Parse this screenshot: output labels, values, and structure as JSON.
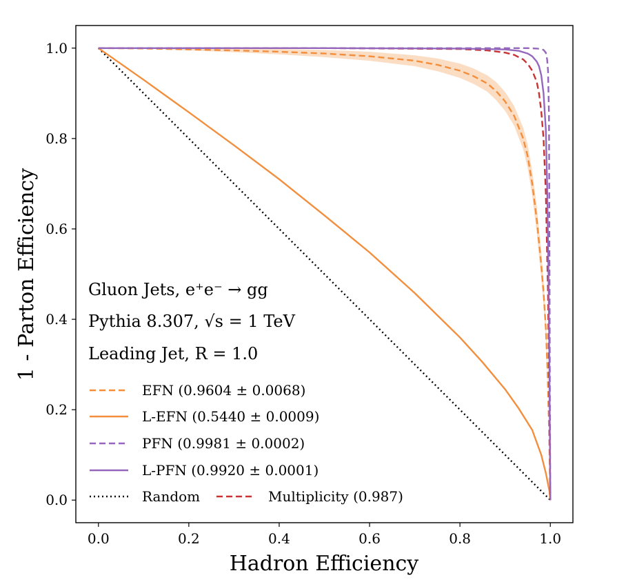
{
  "chart_data": {
    "type": "line",
    "title": "",
    "xlabel": "Hadron Efficiency",
    "ylabel": "1 - Parton Efficiency",
    "xlim": [
      -0.05,
      1.05
    ],
    "ylim": [
      -0.05,
      1.05
    ],
    "xticks": [
      0.0,
      0.2,
      0.4,
      0.6,
      0.8,
      1.0
    ],
    "yticks": [
      0.0,
      0.2,
      0.4,
      0.6,
      0.8,
      1.0
    ],
    "xtick_labels": [
      "0.0",
      "0.2",
      "0.4",
      "0.6",
      "0.8",
      "1.0"
    ],
    "ytick_labels": [
      "0.0",
      "0.2",
      "0.4",
      "0.6",
      "0.8",
      "1.0"
    ],
    "grid": false,
    "annotations": [
      "Gluon Jets, e⁺e⁻ → gg",
      "Pythia 8.307, √s = 1 TeV",
      "Leading Jet, R = 1.0"
    ],
    "legend_placement": "lower-left",
    "series": [
      {
        "name": "EFN (0.9604 ± 0.0068)",
        "color": "#f28e3c",
        "style": "dashed",
        "band": true,
        "band_width": [
          0,
          0,
          0.002,
          0.004,
          0.006,
          0.008,
          0.01,
          0.012,
          0.014,
          0.016,
          0.017,
          0.018,
          0.02,
          0.021,
          0.022,
          0.024,
          0.026,
          0.028,
          0.03,
          0.03,
          0.028,
          0.025,
          0.02,
          0.012,
          0.006,
          0
        ],
        "x": [
          0.0,
          0.1,
          0.2,
          0.3,
          0.4,
          0.5,
          0.6,
          0.7,
          0.75,
          0.8,
          0.83,
          0.86,
          0.88,
          0.9,
          0.92,
          0.94,
          0.95,
          0.96,
          0.97,
          0.98,
          0.985,
          0.99,
          0.994,
          0.997,
          0.999,
          1.0
        ],
        "y": [
          1.0,
          0.999,
          0.997,
          0.995,
          0.992,
          0.988,
          0.982,
          0.972,
          0.963,
          0.95,
          0.938,
          0.922,
          0.905,
          0.882,
          0.85,
          0.8,
          0.76,
          0.7,
          0.62,
          0.52,
          0.46,
          0.38,
          0.28,
          0.16,
          0.06,
          0.0
        ]
      },
      {
        "name": "L-EFN (0.5440 ± 0.0009)",
        "color": "#f28e3c",
        "style": "solid",
        "x": [
          0.0,
          0.05,
          0.1,
          0.2,
          0.3,
          0.4,
          0.5,
          0.6,
          0.7,
          0.8,
          0.85,
          0.9,
          0.93,
          0.96,
          0.98,
          0.99,
          0.998,
          1.0
        ],
        "y": [
          1.0,
          0.965,
          0.93,
          0.858,
          0.785,
          0.71,
          0.63,
          0.548,
          0.458,
          0.36,
          0.305,
          0.245,
          0.203,
          0.155,
          0.1,
          0.06,
          0.02,
          0.0
        ]
      },
      {
        "name": "PFN (0.9981 ± 0.0002)",
        "color": "#9467bd",
        "style": "dashed",
        "x": [
          0.0,
          0.5,
          0.9,
          0.95,
          0.97,
          0.98,
          0.985,
          0.99,
          0.993,
          0.995,
          0.997,
          0.998,
          0.999,
          1.0
        ],
        "y": [
          1.0,
          1.0,
          1.0,
          1.0,
          0.999,
          0.998,
          0.996,
          0.99,
          0.975,
          0.95,
          0.85,
          0.6,
          0.25,
          0.0
        ]
      },
      {
        "name": "L-PFN (0.9920 ± 0.0001)",
        "color": "#9467bd",
        "style": "solid",
        "x": [
          0.0,
          0.5,
          0.8,
          0.9,
          0.93,
          0.95,
          0.96,
          0.97,
          0.975,
          0.98,
          0.985,
          0.99,
          0.993,
          0.996,
          0.998,
          1.0
        ],
        "y": [
          1.0,
          1.0,
          0.999,
          0.997,
          0.994,
          0.988,
          0.982,
          0.97,
          0.96,
          0.94,
          0.9,
          0.82,
          0.7,
          0.5,
          0.3,
          0.0
        ]
      },
      {
        "name": "Random",
        "color": "#000000",
        "style": "dotted",
        "x": [
          0.0,
          1.0
        ],
        "y": [
          1.0,
          0.0
        ]
      },
      {
        "name": "Multiplicity (0.987)",
        "color": "#c73232",
        "style": "dashed",
        "x": [
          0.0,
          0.5,
          0.8,
          0.86,
          0.9,
          0.92,
          0.94,
          0.95,
          0.96,
          0.97,
          0.975,
          0.98,
          0.985,
          0.99,
          0.995,
          0.998,
          1.0
        ],
        "y": [
          1.0,
          1.0,
          0.998,
          0.995,
          0.99,
          0.985,
          0.975,
          0.965,
          0.95,
          0.925,
          0.9,
          0.86,
          0.8,
          0.68,
          0.45,
          0.2,
          0.0
        ]
      }
    ]
  }
}
